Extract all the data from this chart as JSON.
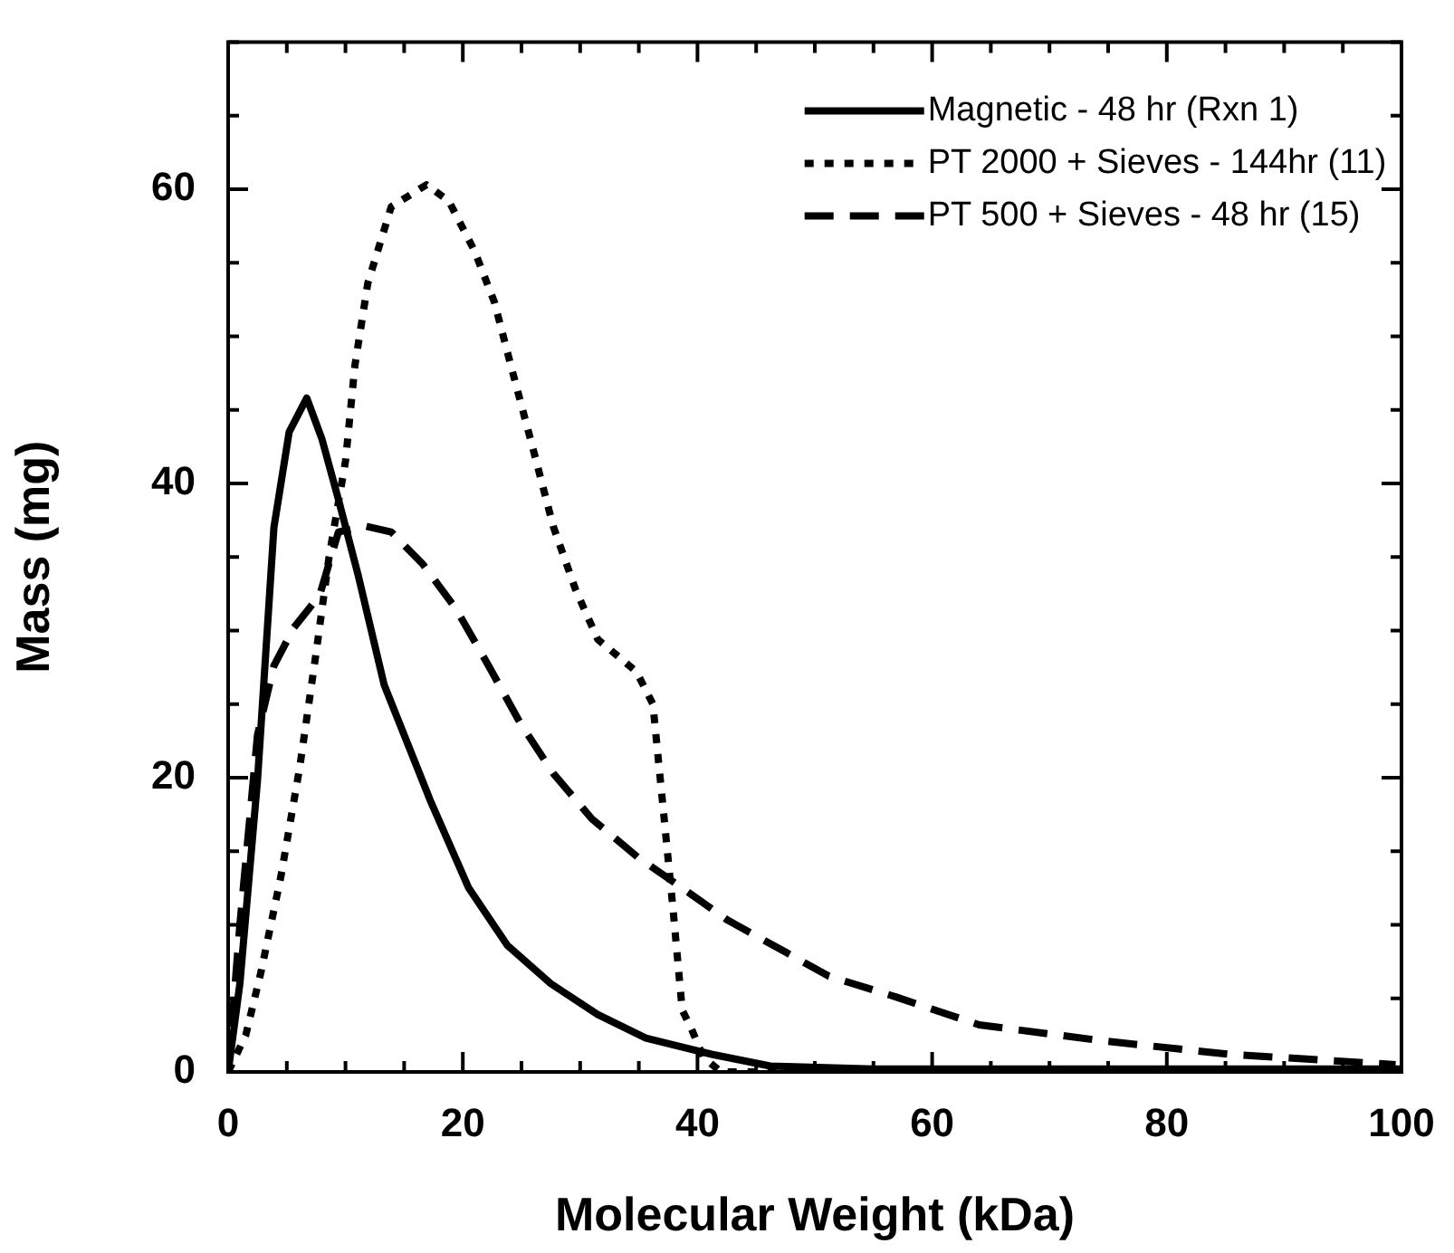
{
  "chart_data": {
    "type": "line",
    "xlabel": "Molecular Weight (kDa)",
    "ylabel": "Mass (mg)",
    "xlim": [
      0,
      100
    ],
    "ylim": [
      0,
      70
    ],
    "xticks": [
      0,
      {
        "value": 5,
        "label": null
      },
      {
        "value": 10,
        "label": null
      },
      {
        "value": 15,
        "label": null
      },
      20,
      {
        "value": 25,
        "label": null
      },
      {
        "value": 30,
        "label": null
      },
      {
        "value": 35,
        "label": null
      },
      40,
      {
        "value": 45,
        "label": null
      },
      {
        "value": 50,
        "label": null
      },
      {
        "value": 55,
        "label": null
      },
      60,
      {
        "value": 65,
        "label": null
      },
      {
        "value": 70,
        "label": null
      },
      {
        "value": 75,
        "label": null
      },
      80,
      {
        "value": 85,
        "label": null
      },
      {
        "value": 90,
        "label": null
      },
      {
        "value": 95,
        "label": null
      },
      100
    ],
    "yticks": [
      0,
      {
        "value": 5,
        "label": null
      },
      {
        "value": 10,
        "label": null
      },
      {
        "value": 15,
        "label": null
      },
      20,
      {
        "value": 25,
        "label": null
      },
      {
        "value": 30,
        "label": null
      },
      {
        "value": 35,
        "label": null
      },
      40,
      {
        "value": 45,
        "label": null
      },
      {
        "value": 50,
        "label": null
      },
      {
        "value": 55,
        "label": null
      },
      60,
      {
        "value": 65,
        "label": null
      },
      {
        "value": 70,
        "label": null
      }
    ],
    "grid": false,
    "legend": "top right",
    "marker": "none",
    "series": [
      {
        "name": "Magnetic - 48 hr (Rxn 1)",
        "color": "#000000",
        "line_style": "solid",
        "x": [
          0,
          1,
          2.5,
          3.9,
          5.2,
          6.7,
          8,
          9.4,
          11.1,
          13.3,
          16.1,
          17.2,
          20.5,
          23.8,
          27.5,
          31.5,
          35.6,
          41.2,
          46.2,
          55,
          70,
          85,
          100
        ],
        "values": [
          0,
          6,
          19.8,
          37,
          43.5,
          45.8,
          43,
          38.9,
          33.7,
          26.3,
          20.7,
          18.5,
          12.5,
          8.6,
          6,
          3.9,
          2.3,
          1.2,
          0.4,
          0.2,
          0.2,
          0.2,
          0.2
        ]
      },
      {
        "name": "PT 2000 + Sieves - 144hr (11)",
        "color": "#000000",
        "line_style": "dotted",
        "x": [
          0,
          1.5,
          2.8,
          4.5,
          6.1,
          7.5,
          8.6,
          10,
          10.8,
          11.9,
          13.9,
          16.9,
          18.8,
          21,
          22.7,
          24.1,
          26,
          27.7,
          29.6,
          31.5,
          34.8,
          36.2,
          37.1,
          37.9,
          38.7,
          39.5,
          40.5,
          42,
          60,
          80,
          100
        ],
        "values": [
          0,
          2.5,
          6.8,
          13.3,
          20.7,
          28.5,
          35,
          41.5,
          48,
          53.6,
          58.8,
          60.3,
          59.2,
          55.8,
          52.3,
          48,
          42.3,
          37.1,
          32.8,
          29.4,
          27.2,
          25,
          17.7,
          11.2,
          4.2,
          2.9,
          1,
          0,
          0,
          0,
          0
        ]
      },
      {
        "name": "PT 500 + Sieves - 48 hr (15)",
        "color": "#000000",
        "line_style": "dashed",
        "x": [
          0,
          1,
          2.5,
          3.9,
          5.6,
          7.8,
          9.4,
          11.7,
          13.9,
          16.6,
          19.4,
          22.2,
          24.9,
          27.7,
          31,
          34.9,
          38.7,
          42.6,
          47.6,
          51.2,
          56.9,
          64,
          74.7,
          85.3,
          99.5
        ],
        "values": [
          0,
          10,
          22.9,
          27.6,
          30.2,
          32.4,
          36.7,
          37.1,
          36.7,
          34.5,
          31.5,
          27.6,
          23.7,
          20.3,
          17.2,
          14.6,
          12.5,
          10.3,
          8.1,
          6.5,
          5.1,
          3.2,
          2.1,
          1.2,
          0.5
        ]
      }
    ]
  }
}
